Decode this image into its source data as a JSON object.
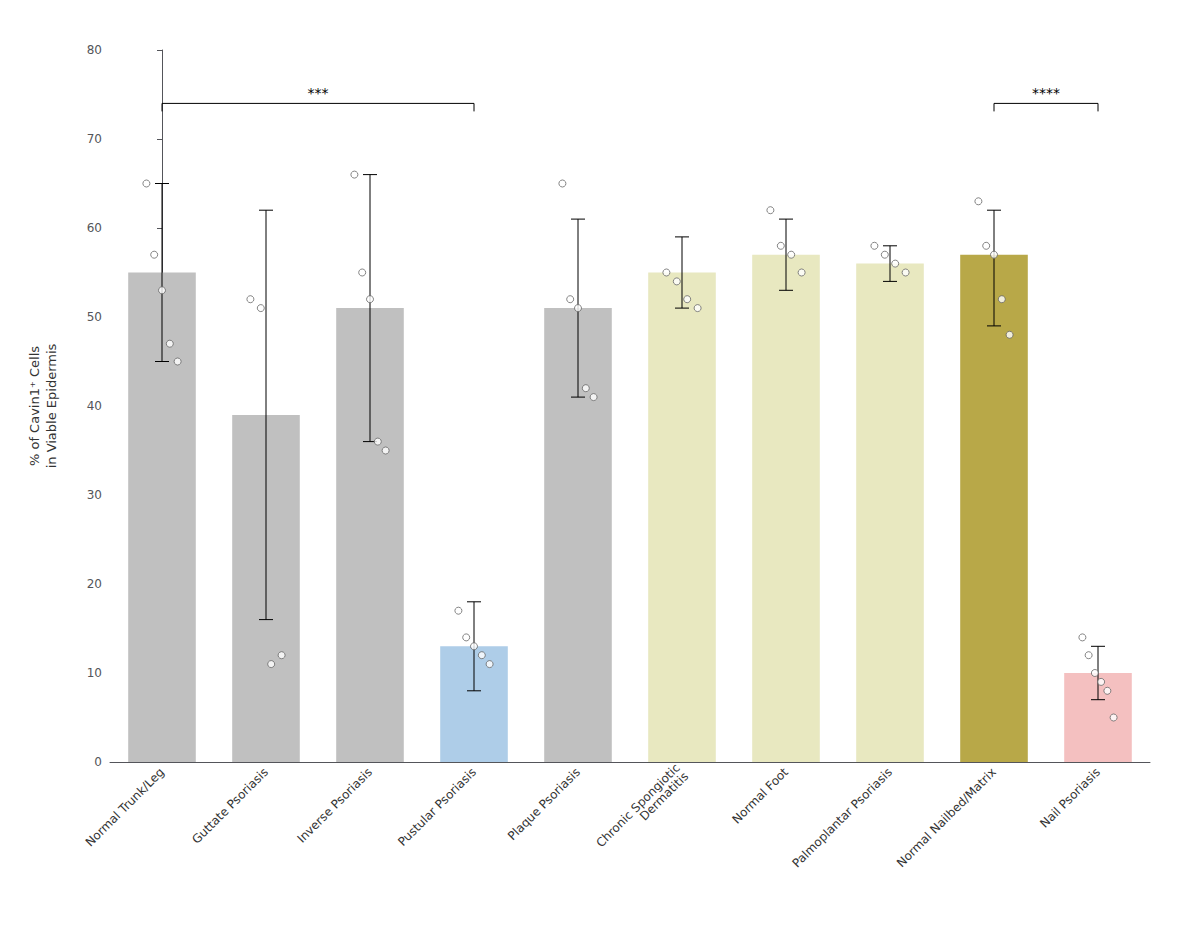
{
  "chart_data": {
    "type": "bar",
    "categories": [
      "Normal Trunk/Leg",
      "Guttate Psoriasis",
      "Inverse Psoriasis",
      "Pustular Psoriasis",
      "Plaque Psoriasis",
      "Chronic Spongiotic\nDermatitis",
      "Normal Foot",
      "Palmoplantar Psoriasis",
      "Normal Nailbed/Matrix",
      "Nail Psoriasis"
    ],
    "values": [
      55,
      39,
      51,
      13,
      51,
      55,
      57,
      56,
      57,
      10
    ],
    "errors_upper": [
      10,
      23,
      15,
      5,
      10,
      4,
      4,
      2,
      5,
      3
    ],
    "errors_lower": [
      10,
      23,
      15,
      5,
      10,
      4,
      4,
      2,
      8,
      3
    ],
    "points": [
      [
        65,
        57,
        53,
        47,
        45
      ],
      [
        52,
        51,
        11,
        12
      ],
      [
        66,
        55,
        52,
        36,
        35
      ],
      [
        17,
        14,
        13,
        12,
        11
      ],
      [
        65,
        52,
        51,
        42,
        41
      ],
      [
        55,
        54,
        52,
        51
      ],
      [
        62,
        58,
        57,
        55
      ],
      [
        58,
        57,
        56,
        55
      ],
      [
        63,
        58,
        57,
        52,
        48
      ],
      [
        14,
        12,
        10,
        9,
        8,
        5
      ]
    ],
    "colors": [
      "#c0c0c0",
      "#c0c0c0",
      "#c0c0c0",
      "#aecde8",
      "#c0c0c0",
      "#e8e8c0",
      "#e8e8c0",
      "#e8e8c0",
      "#b8a848",
      "#f4c0c0"
    ],
    "ylabel": "% of Cavin1⁺ Cells\nin Viable Epidermis",
    "ylim": [
      0,
      80
    ],
    "yticks": [
      0,
      10,
      20,
      30,
      40,
      50,
      60,
      70,
      80
    ],
    "grid": false,
    "annotations": [
      {
        "text": "***",
        "from": "Normal Trunk/Leg",
        "to": "Pustular Psoriasis",
        "y": 74
      },
      {
        "text": "****",
        "from": "Normal Nailbed/Matrix",
        "to": "Nail Psoriasis",
        "y": 74
      }
    ]
  }
}
